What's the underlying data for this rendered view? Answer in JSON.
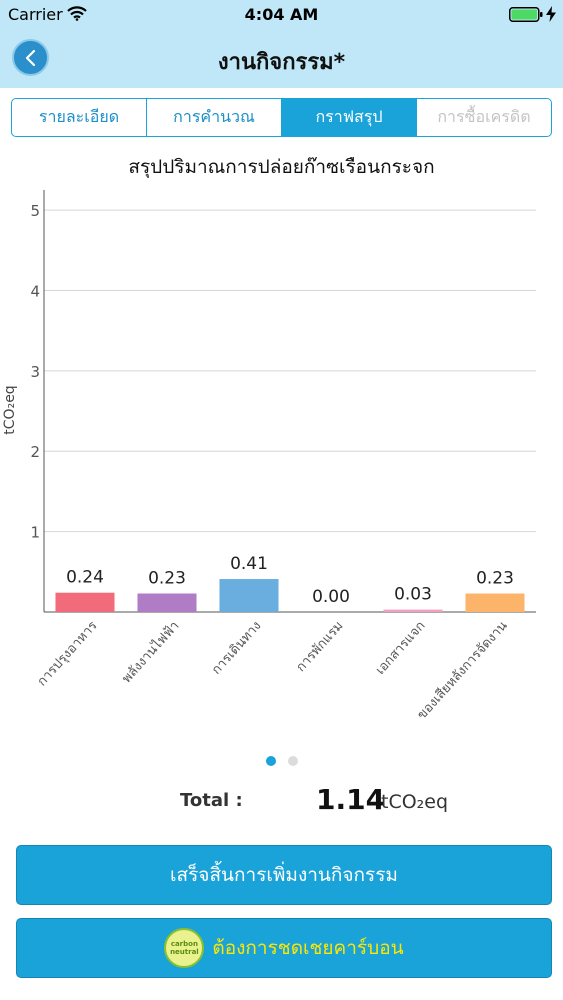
{
  "status_bar": {
    "carrier": "Carrier",
    "time": "4:04 AM"
  },
  "nav": {
    "title": "งานกิจกรรม*"
  },
  "tabs": [
    {
      "label": "รายละเอียด",
      "state": "normal"
    },
    {
      "label": "การคำนวณ",
      "state": "normal"
    },
    {
      "label": "กราฟสรุป",
      "state": "active"
    },
    {
      "label": "การซื้อเครดิต",
      "state": "disabled"
    }
  ],
  "chart_data": {
    "type": "bar",
    "title": "สรุปปริมาณการปล่อยก๊าซเรือนกระจก",
    "ylabel": "tCO₂eq",
    "xlabel": "",
    "ylim": [
      0,
      5.25
    ],
    "yticks": [
      "1",
      "2",
      "3",
      "4",
      "5"
    ],
    "grid": true,
    "categories": [
      "การปรุงอาหาร",
      "พลังงานไฟฟ้า",
      "การเดินทาง",
      "การพักแรม",
      "เอกสารแจก",
      "ของเสียหลังการจัดงาน"
    ],
    "values": [
      0.24,
      0.23,
      0.41,
      0.0,
      0.03,
      0.23
    ],
    "value_labels": [
      "0.24",
      "0.23",
      "0.41",
      "0.00",
      "0.03",
      "0.23"
    ],
    "colors": [
      "#f26b7a",
      "#b07cc6",
      "#6aaee0",
      "#7fc97f",
      "#f2a0c0",
      "#fcb46a"
    ]
  },
  "pagination": {
    "count": 2,
    "active": 0
  },
  "total": {
    "label": "Total :",
    "value": "1.14",
    "unit": "tCO₂eq"
  },
  "buttons": {
    "finish": "เสร็จสิ้นการเพิ่มงานกิจกรรม",
    "offset": "ต้องการชดเชยคาร์บอน",
    "offset_badge": "carbon neutral"
  }
}
